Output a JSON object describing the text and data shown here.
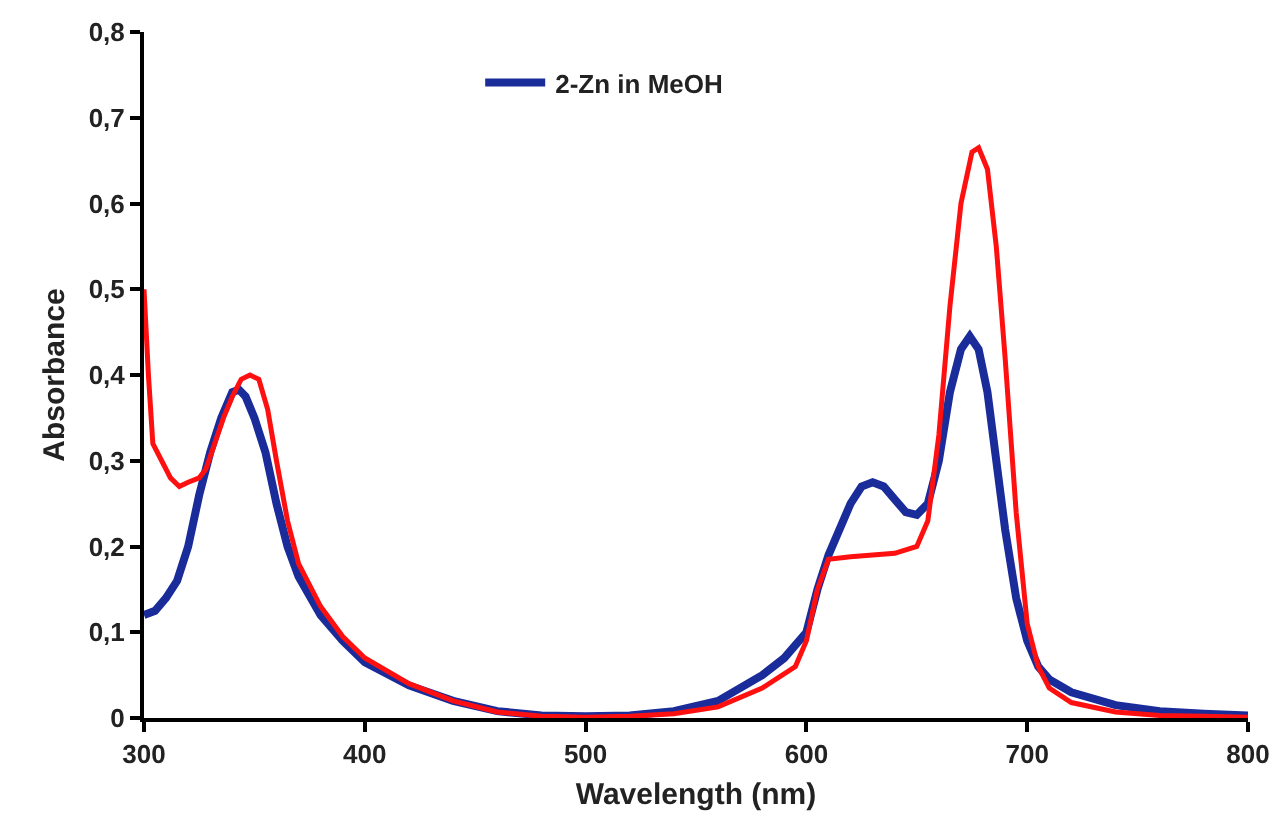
{
  "chart_data": {
    "type": "line",
    "xlabel": "Wavelength (nm)",
    "ylabel": "Absorbance",
    "xlim": [
      300,
      800
    ],
    "xticks": [
      300,
      400,
      500,
      600,
      700,
      800
    ],
    "ylim": [
      0,
      0.8
    ],
    "yticks": [
      0,
      {
        "value": 0.1,
        "label": "0,1"
      },
      {
        "value": 0.2,
        "label": "0,2"
      },
      {
        "value": 0.3,
        "label": "0,3"
      },
      {
        "value": 0.4,
        "label": "0,4"
      },
      {
        "value": 0.5,
        "label": "0,5"
      },
      {
        "value": 0.6,
        "label": "0,6"
      },
      {
        "value": 0.7,
        "label": "0,7"
      },
      {
        "value": 0.8,
        "label": "0,8"
      }
    ],
    "grid": false,
    "legend": "top",
    "marker": "none",
    "line_style": "solid",
    "series": [
      {
        "name": "2-Zn in MeOH",
        "color": "#1a2b9a",
        "x": [
          300,
          305,
          310,
          315,
          320,
          325,
          330,
          335,
          340,
          343,
          346,
          350,
          355,
          360,
          365,
          370,
          380,
          390,
          400,
          420,
          440,
          460,
          480,
          500,
          520,
          540,
          560,
          580,
          590,
          600,
          605,
          610,
          615,
          620,
          625,
          630,
          635,
          640,
          645,
          650,
          655,
          660,
          665,
          670,
          674,
          678,
          682,
          686,
          690,
          695,
          700,
          705,
          710,
          720,
          740,
          760,
          780,
          800
        ],
        "values": [
          0.12,
          0.125,
          0.14,
          0.16,
          0.2,
          0.26,
          0.31,
          0.35,
          0.38,
          0.383,
          0.375,
          0.35,
          0.31,
          0.25,
          0.2,
          0.165,
          0.12,
          0.09,
          0.065,
          0.038,
          0.02,
          0.008,
          0.003,
          0.002,
          0.003,
          0.008,
          0.02,
          0.05,
          0.07,
          0.1,
          0.15,
          0.19,
          0.22,
          0.25,
          0.27,
          0.275,
          0.27,
          0.255,
          0.24,
          0.237,
          0.25,
          0.3,
          0.38,
          0.43,
          0.445,
          0.43,
          0.38,
          0.3,
          0.22,
          0.14,
          0.09,
          0.06,
          0.045,
          0.03,
          0.015,
          0.008,
          0.005,
          0.003
        ]
      },
      {
        "color": "#ff1010",
        "x": [
          300,
          302,
          304,
          308,
          312,
          316,
          320,
          325,
          328,
          332,
          336,
          340,
          344,
          348,
          352,
          356,
          360,
          365,
          370,
          380,
          390,
          400,
          420,
          440,
          460,
          480,
          500,
          520,
          540,
          560,
          580,
          595,
          600,
          605,
          610,
          620,
          630,
          640,
          650,
          655,
          660,
          665,
          670,
          675,
          678,
          682,
          686,
          690,
          695,
          700,
          705,
          710,
          720,
          740,
          760,
          780,
          800
        ],
        "values": [
          0.5,
          0.4,
          0.32,
          0.3,
          0.28,
          0.27,
          0.275,
          0.28,
          0.29,
          0.32,
          0.35,
          0.375,
          0.395,
          0.4,
          0.395,
          0.36,
          0.3,
          0.23,
          0.18,
          0.13,
          0.095,
          0.07,
          0.04,
          0.02,
          0.007,
          0.002,
          0.001,
          0.002,
          0.005,
          0.013,
          0.035,
          0.06,
          0.09,
          0.15,
          0.185,
          0.188,
          0.19,
          0.192,
          0.2,
          0.23,
          0.33,
          0.48,
          0.6,
          0.66,
          0.665,
          0.64,
          0.55,
          0.42,
          0.24,
          0.11,
          0.06,
          0.035,
          0.018,
          0.007,
          0.003,
          0.002,
          0.001
        ]
      }
    ]
  }
}
